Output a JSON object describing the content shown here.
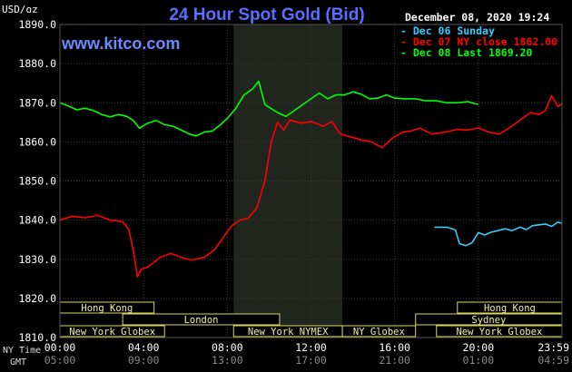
{
  "header": {
    "title": "24 Hour Spot Gold (Bid)",
    "y_unit": "USD/oz",
    "timestamp": "December 08, 2020 19:24",
    "watermark": "www.kitco.com"
  },
  "legend": [
    {
      "label": "Dec 06 Sunday",
      "color": "#33CCFF"
    },
    {
      "label": "Dec 07 NY close 1862.00",
      "color": "#FF0000"
    },
    {
      "label": "Dec 08 Last 1869.20",
      "color": "#00FF00"
    }
  ],
  "time_axis": {
    "row1_label": "NY Time",
    "row2_label": "GMT",
    "ny_ticks": [
      "00:00",
      "04:00",
      "08:00",
      "12:00",
      "16:00",
      "20:00",
      "23:59"
    ],
    "gmt_ticks": [
      "05:00",
      "09:00",
      "13:00",
      "17:00",
      "21:00",
      "01:00",
      "04:59"
    ]
  },
  "markets": [
    {
      "name": "Hong Kong",
      "row": 0,
      "start": 0,
      "end": 4.5
    },
    {
      "name": "Hong Kong",
      "row": 0,
      "start": 19,
      "end": 24
    },
    {
      "name": "London",
      "row": 1,
      "start": 3,
      "end": 10.5
    },
    {
      "name": "Sydney",
      "row": 1,
      "start": 17,
      "end": 24
    },
    {
      "name": "New York Globex",
      "row": 2,
      "start": 0,
      "end": 5
    },
    {
      "name": "New York NYMEX",
      "row": 2,
      "start": 8.3,
      "end": 13.5
    },
    {
      "name": "NY Globex",
      "row": 2,
      "start": 13.5,
      "end": 17
    },
    {
      "name": "New York Globex",
      "row": 2,
      "start": 18,
      "end": 24
    }
  ],
  "chart_data": {
    "type": "line",
    "title": "24 Hour Spot Gold (Bid)",
    "ylabel": "USD/oz",
    "xlabel": "NY Time",
    "xlim": [
      0,
      24
    ],
    "ylim": [
      1810,
      1890
    ],
    "y_ticks": [
      "1890.0",
      "1880.0",
      "1870.0",
      "1860.0",
      "1850.0",
      "1840.0",
      "1830.0",
      "1820.0",
      "1810.0"
    ],
    "grid": true,
    "highlight_band": [
      8.3,
      13.5
    ],
    "legend_position": "top-right",
    "series": [
      {
        "name": "Dec 06 Sunday",
        "color": "#33CCFF",
        "x": [
          17.9,
          18.5,
          18.9,
          19.1,
          19.4,
          19.7,
          20.0,
          20.3,
          20.6,
          21.0,
          21.3,
          21.6,
          22.0,
          22.3,
          22.6,
          22.9,
          23.2,
          23.5,
          23.8,
          24.0
        ],
        "y": [
          1838.2,
          1838.2,
          1837.5,
          1834.0,
          1833.5,
          1834.2,
          1836.8,
          1836.2,
          1836.9,
          1837.4,
          1837.8,
          1837.3,
          1838.2,
          1837.6,
          1838.6,
          1838.8,
          1839.0,
          1838.4,
          1839.5,
          1839.2
        ]
      },
      {
        "name": "Dec 07 NY close 1862.00",
        "color": "#FF0000",
        "x": [
          0,
          0.6,
          1.2,
          1.8,
          2.4,
          3.0,
          3.3,
          3.55,
          3.7,
          3.9,
          4.2,
          4.8,
          5.3,
          5.9,
          6.3,
          6.9,
          7.4,
          7.8,
          8.2,
          8.6,
          9.0,
          9.4,
          9.8,
          10.1,
          10.4,
          10.7,
          11.0,
          11.5,
          12.0,
          12.6,
          13.0,
          13.4,
          13.9,
          14.4,
          14.9,
          15.4,
          15.9,
          16.4,
          16.8,
          17.2,
          17.8,
          18.4,
          19.0,
          19.5,
          20.0,
          20.5,
          21.0,
          21.6,
          22.1,
          22.5,
          22.9,
          23.2,
          23.5,
          23.8,
          24.0
        ],
        "y": [
          1840.0,
          1841.0,
          1840.6,
          1841.2,
          1840.0,
          1839.6,
          1837.5,
          1831.0,
          1825.5,
          1827.5,
          1828.0,
          1830.5,
          1831.5,
          1830.3,
          1829.8,
          1830.5,
          1832.5,
          1835.5,
          1838.5,
          1840.0,
          1840.5,
          1843.0,
          1850.0,
          1860.0,
          1865.0,
          1863.0,
          1865.6,
          1864.8,
          1865.2,
          1864.0,
          1865.2,
          1862.0,
          1861.3,
          1860.5,
          1860.0,
          1858.5,
          1861.0,
          1862.5,
          1862.8,
          1863.5,
          1862.0,
          1862.5,
          1863.2,
          1863.0,
          1863.6,
          1862.5,
          1862.0,
          1864.0,
          1866.0,
          1867.5,
          1867.0,
          1868.0,
          1871.8,
          1869.0,
          1869.8
        ]
      },
      {
        "name": "Dec 08 Last 1869.20",
        "color": "#00FF00",
        "x": [
          0,
          0.4,
          0.8,
          1.2,
          1.6,
          2.0,
          2.4,
          2.8,
          3.2,
          3.5,
          3.8,
          4.2,
          4.6,
          5.0,
          5.4,
          5.8,
          6.2,
          6.5,
          6.9,
          7.3,
          7.7,
          8.0,
          8.4,
          8.8,
          9.2,
          9.5,
          9.8,
          10.1,
          10.4,
          10.8,
          11.2,
          11.6,
          12.0,
          12.4,
          12.8,
          13.2,
          13.6,
          14.0,
          14.4,
          14.8,
          15.2,
          15.6,
          16.0,
          16.5,
          17.0,
          17.5,
          18.0,
          18.5,
          19.0,
          19.5,
          19.8,
          20.0
        ],
        "y": [
          1870.0,
          1869.2,
          1868.2,
          1868.6,
          1868.0,
          1867.0,
          1866.4,
          1867.0,
          1866.5,
          1865.5,
          1863.5,
          1864.8,
          1865.5,
          1864.4,
          1864.0,
          1863.0,
          1862.0,
          1861.5,
          1862.5,
          1862.8,
          1864.5,
          1866.0,
          1868.5,
          1872.0,
          1873.5,
          1875.5,
          1869.5,
          1868.5,
          1867.5,
          1866.5,
          1868.0,
          1869.5,
          1871.0,
          1872.5,
          1871.0,
          1872.0,
          1872.0,
          1872.8,
          1872.2,
          1871.0,
          1871.2,
          1872.0,
          1871.2,
          1871.0,
          1871.0,
          1870.5,
          1870.5,
          1870.0,
          1870.0,
          1870.3,
          1869.8,
          1869.6
        ]
      }
    ]
  }
}
